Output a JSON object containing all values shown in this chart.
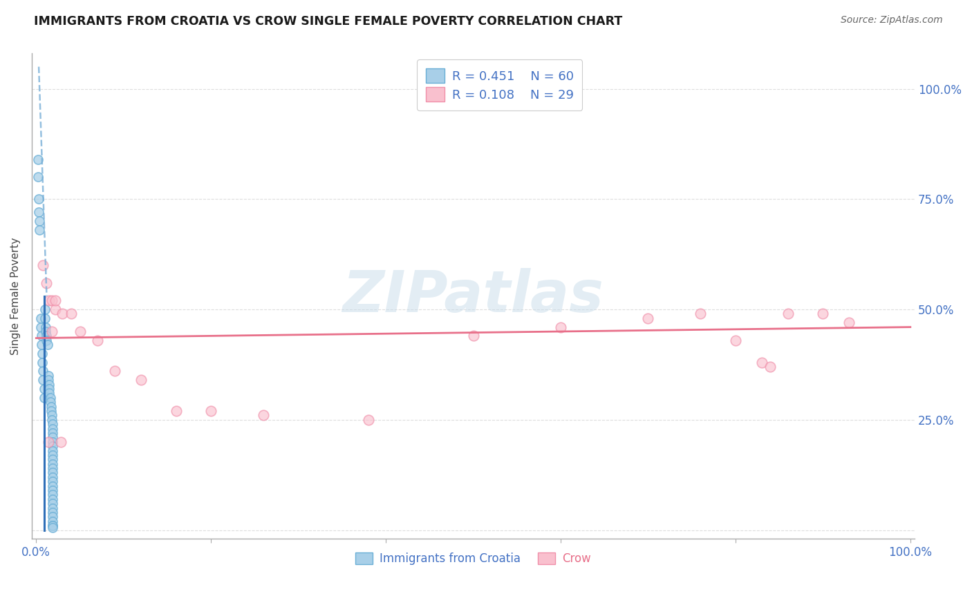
{
  "title": "IMMIGRANTS FROM CROATIA VS CROW SINGLE FEMALE POVERTY CORRELATION CHART",
  "source": "Source: ZipAtlas.com",
  "ylabel": "Single Female Poverty",
  "legend_top_entries": [
    {
      "label_r": "R = 0.451",
      "label_n": "N = 60",
      "color": "#8ec4e8"
    },
    {
      "label_r": "R = 0.108",
      "label_n": "N = 29",
      "color": "#f4b8c8"
    }
  ],
  "legend_bottom": [
    "Immigrants from Croatia",
    "Crow"
  ],
  "legend_bottom_colors": [
    "#8ec4e8",
    "#f4b8c8"
  ],
  "watermark": "ZIPatlas",
  "background_color": "#ffffff",
  "grid_color": "#dddddd",
  "blue_scatter_x": [
    0.002,
    0.002,
    0.003,
    0.003,
    0.004,
    0.004,
    0.005,
    0.005,
    0.006,
    0.006,
    0.007,
    0.007,
    0.008,
    0.008,
    0.009,
    0.009,
    0.01,
    0.01,
    0.011,
    0.011,
    0.012,
    0.012,
    0.013,
    0.014,
    0.014,
    0.015,
    0.015,
    0.015,
    0.016,
    0.016,
    0.017,
    0.017,
    0.018,
    0.018,
    0.019,
    0.019,
    0.019,
    0.019,
    0.019,
    0.019,
    0.019,
    0.019,
    0.019,
    0.019,
    0.019,
    0.019,
    0.019,
    0.019,
    0.019,
    0.019,
    0.019,
    0.019,
    0.019,
    0.019,
    0.019,
    0.019,
    0.019,
    0.019,
    0.019,
    0.019
  ],
  "blue_scatter_y": [
    0.84,
    0.8,
    0.75,
    0.72,
    0.7,
    0.68,
    0.48,
    0.46,
    0.44,
    0.42,
    0.4,
    0.38,
    0.36,
    0.34,
    0.32,
    0.3,
    0.5,
    0.48,
    0.46,
    0.45,
    0.44,
    0.43,
    0.42,
    0.35,
    0.34,
    0.33,
    0.32,
    0.31,
    0.3,
    0.29,
    0.28,
    0.27,
    0.26,
    0.25,
    0.24,
    0.23,
    0.22,
    0.21,
    0.2,
    0.19,
    0.18,
    0.17,
    0.16,
    0.15,
    0.14,
    0.13,
    0.12,
    0.11,
    0.1,
    0.09,
    0.08,
    0.07,
    0.06,
    0.05,
    0.04,
    0.03,
    0.02,
    0.01,
    0.01,
    0.005
  ],
  "pink_scatter_x": [
    0.008,
    0.012,
    0.015,
    0.018,
    0.022,
    0.03,
    0.04,
    0.05,
    0.07,
    0.09,
    0.12,
    0.16,
    0.2,
    0.26,
    0.38,
    0.5,
    0.6,
    0.7,
    0.76,
    0.8,
    0.83,
    0.84,
    0.86,
    0.9,
    0.93,
    0.014,
    0.018,
    0.022,
    0.028
  ],
  "pink_scatter_y": [
    0.6,
    0.56,
    0.52,
    0.52,
    0.5,
    0.49,
    0.49,
    0.45,
    0.43,
    0.36,
    0.34,
    0.27,
    0.27,
    0.26,
    0.25,
    0.44,
    0.46,
    0.48,
    0.49,
    0.43,
    0.38,
    0.37,
    0.49,
    0.49,
    0.47,
    0.2,
    0.45,
    0.52,
    0.2
  ],
  "blue_solid_line_x": [
    0.0095,
    0.0095
  ],
  "blue_solid_line_y": [
    0.0,
    0.53
  ],
  "blue_dashed_line_x": [
    0.003,
    0.012
  ],
  "blue_dashed_line_y": [
    1.05,
    0.53
  ],
  "pink_line_x": [
    0.0,
    1.0
  ],
  "pink_line_y": [
    0.435,
    0.46
  ],
  "xlim": [
    -0.005,
    1.005
  ],
  "ylim": [
    -0.02,
    1.08
  ],
  "xticks": [
    0,
    0.2,
    0.4,
    0.6,
    0.8,
    1.0
  ],
  "xtick_labels": [
    "0.0%",
    "",
    "",
    "",
    "",
    "100.0%"
  ],
  "yticks": [
    0,
    0.25,
    0.5,
    0.75,
    1.0
  ],
  "ytick_labels_right": [
    "",
    "25.0%",
    "50.0%",
    "75.0%",
    "100.0%"
  ]
}
